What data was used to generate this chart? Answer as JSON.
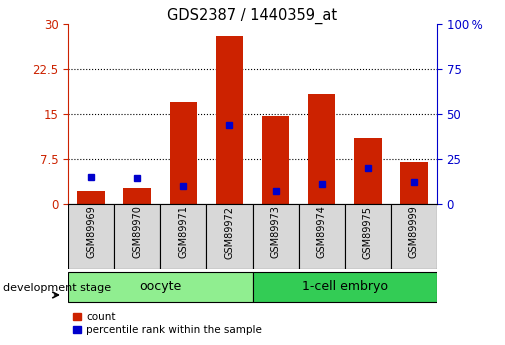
{
  "title": "GDS2387 / 1440359_at",
  "samples": [
    "GSM89969",
    "GSM89970",
    "GSM89971",
    "GSM89972",
    "GSM89973",
    "GSM89974",
    "GSM89975",
    "GSM89999"
  ],
  "counts": [
    2.1,
    2.6,
    17.0,
    28.1,
    14.6,
    18.4,
    11.0,
    7.0
  ],
  "percentiles": [
    15.0,
    14.5,
    10.0,
    44.0,
    7.0,
    11.0,
    20.0,
    12.0
  ],
  "groups": [
    {
      "label": "oocyte",
      "start": 0,
      "end": 3,
      "color": "#90EE90"
    },
    {
      "label": "1-cell embryo",
      "start": 4,
      "end": 7,
      "color": "#33CC55"
    }
  ],
  "group_label": "development stage",
  "left_axis_color": "#CC2200",
  "right_axis_color": "#0000CC",
  "bar_color": "#CC2200",
  "percentile_color": "#0000CC",
  "ylim_left": [
    0,
    30
  ],
  "ylim_right": [
    0,
    100
  ],
  "yticks_left": [
    0,
    7.5,
    15,
    22.5,
    30
  ],
  "ytick_labels_left": [
    "0",
    "7.5",
    "15",
    "22.5",
    "30"
  ],
  "yticks_right": [
    0,
    25,
    50,
    75,
    100
  ],
  "ytick_labels_right": [
    "0",
    "25",
    "50",
    "75",
    "100 %"
  ],
  "background_color": "#ffffff"
}
